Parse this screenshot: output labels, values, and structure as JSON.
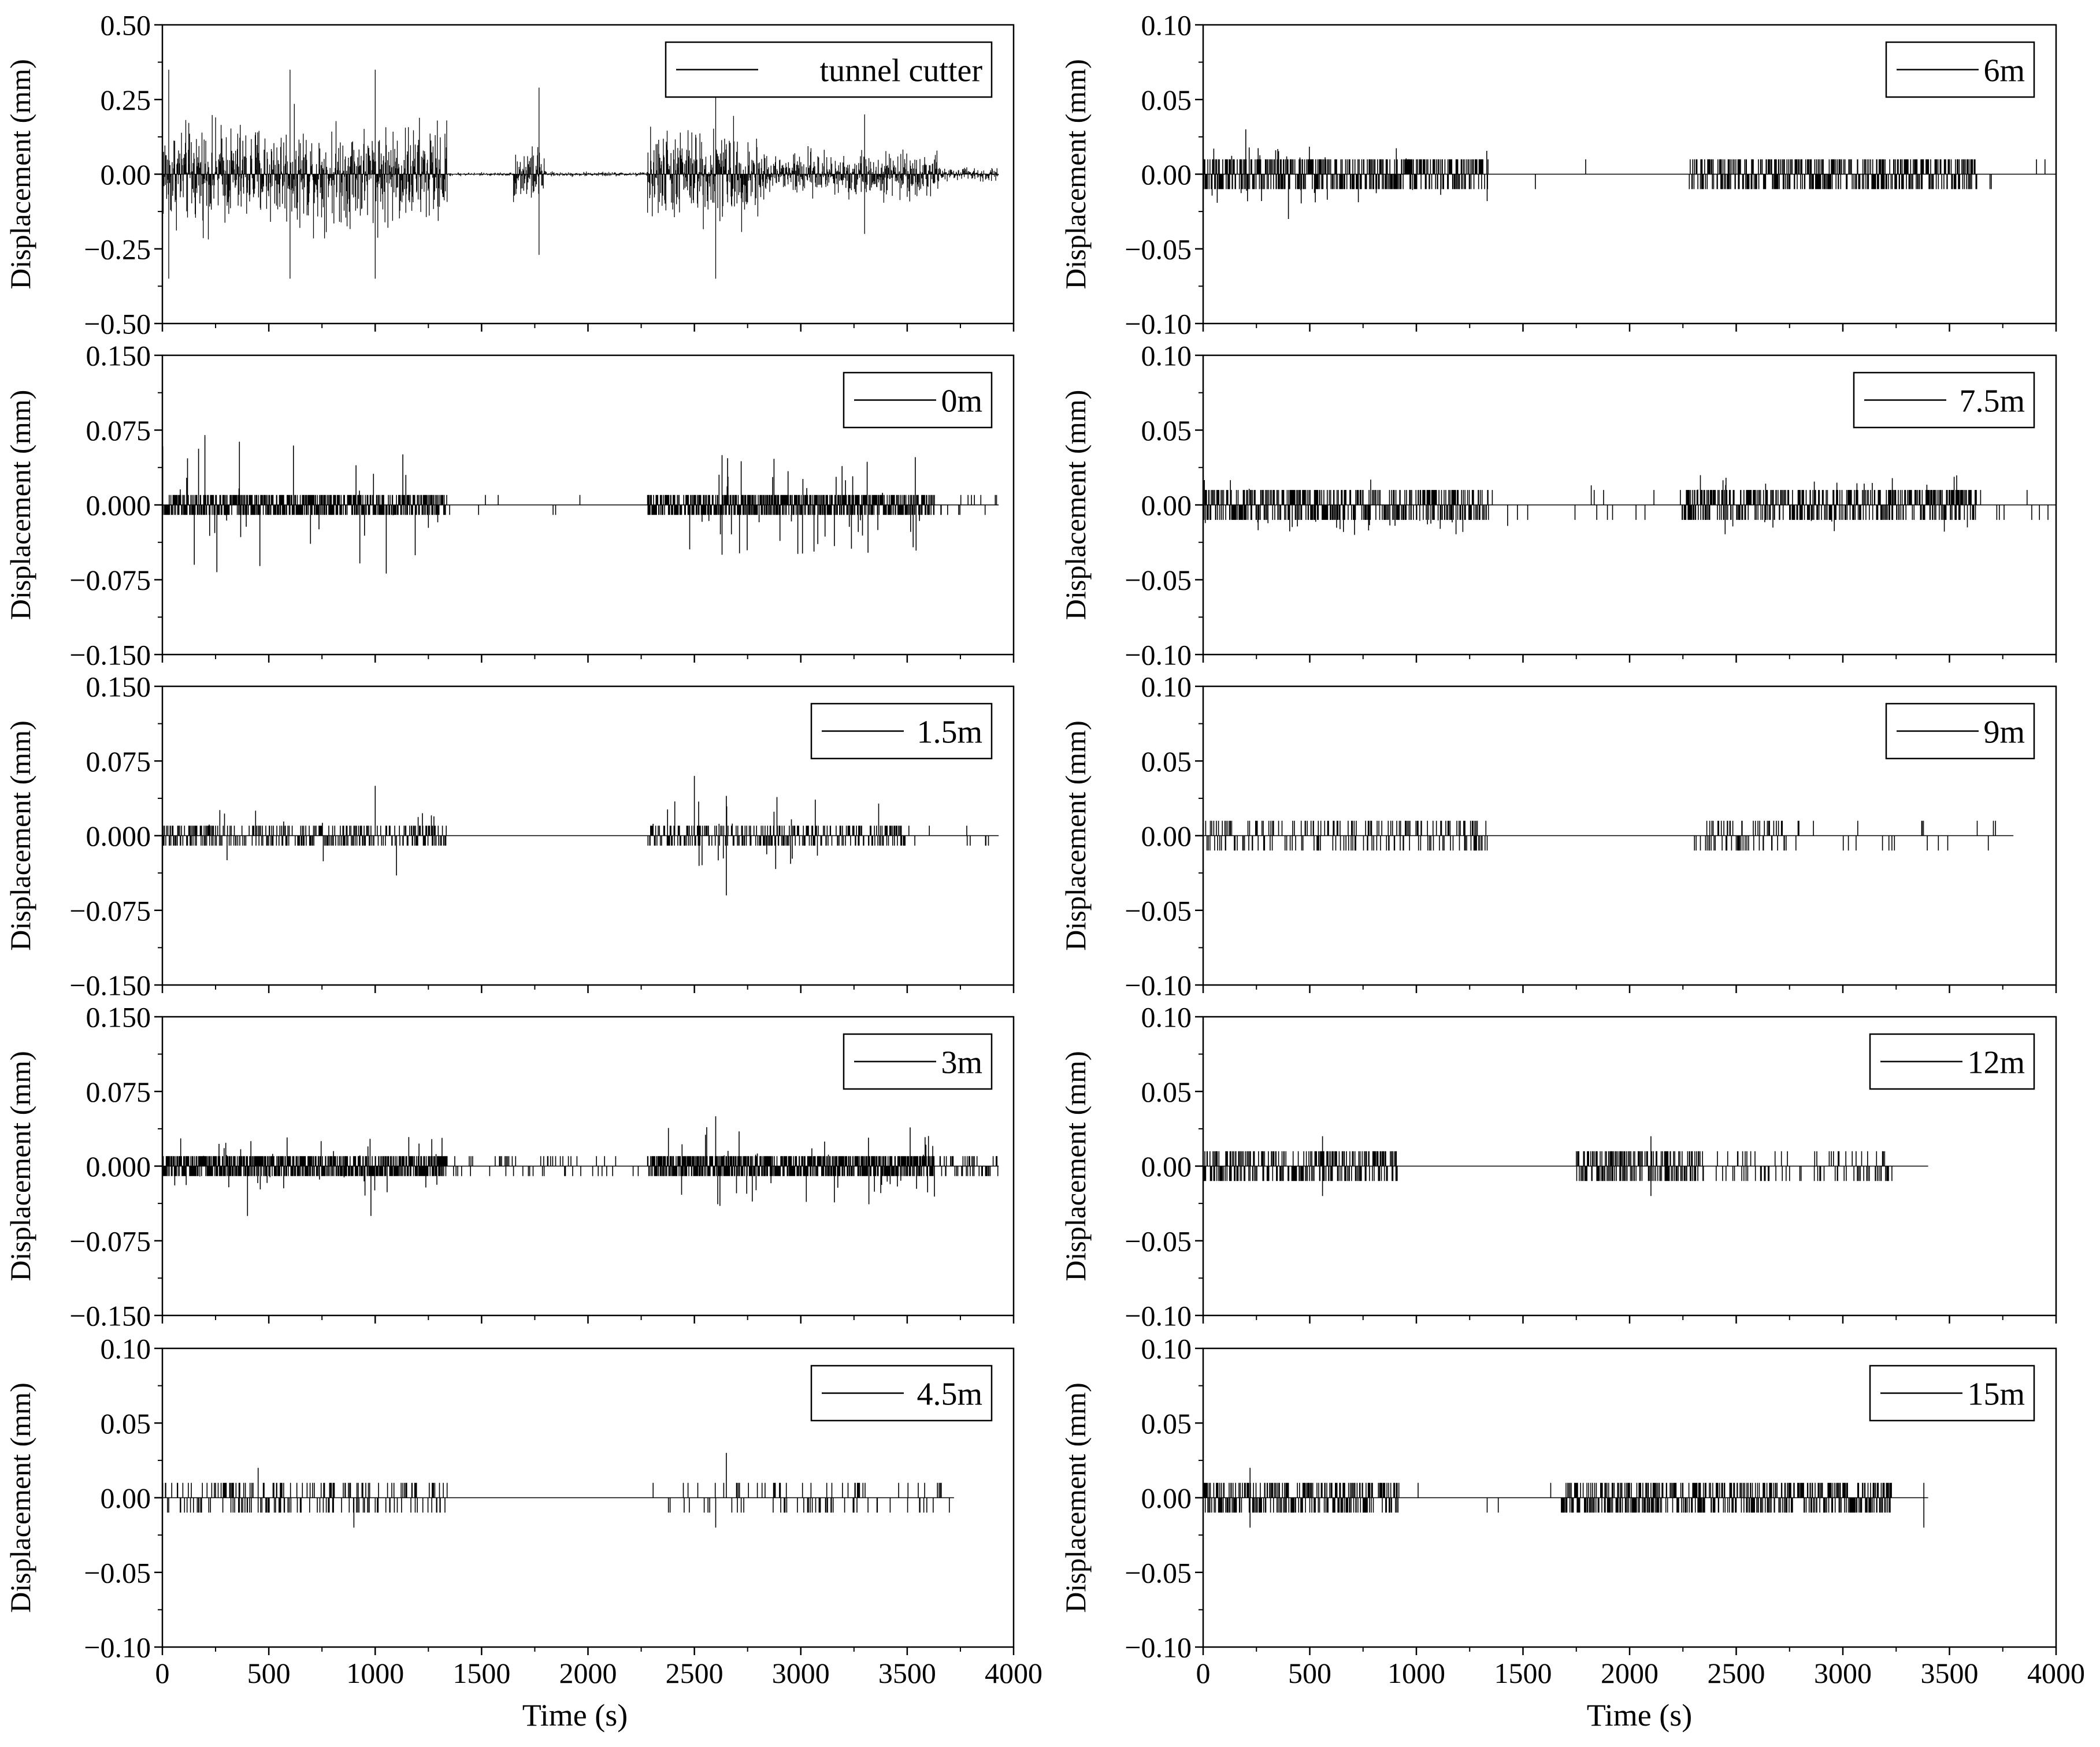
{
  "figure": {
    "xlabel": "Time (s)",
    "ylabel": "Displacement (mm)"
  },
  "chart_data": [
    {
      "type": "line",
      "column": "left",
      "row": 0,
      "legend": "tunnel cutter",
      "legend_position": "top-right",
      "ylim": [
        -0.5,
        0.5
      ],
      "yticks": [
        "0.50",
        "0.25",
        "0.00",
        "−0.25",
        "−0.50"
      ],
      "ytick_values": [
        0.5,
        0.25,
        0,
        -0.25,
        -0.5
      ],
      "xlim": [
        0,
        4000
      ],
      "ylabel": "Displacement (mm)",
      "pattern": "noise",
      "segments": [
        {
          "t0": 0,
          "t1": 1340,
          "amp": 0.22,
          "peak": 0.35
        },
        {
          "t0": 1340,
          "t1": 1650,
          "amp": 0.008,
          "peak": 0.01
        },
        {
          "t0": 1650,
          "t1": 1800,
          "amp": 0.12,
          "peak": 0.29
        },
        {
          "t0": 1800,
          "t1": 2280,
          "amp": 0.01,
          "peak": 0.015
        },
        {
          "t0": 2280,
          "t1": 2800,
          "amp": 0.2,
          "peak": 0.35
        },
        {
          "t0": 2800,
          "t1": 3650,
          "amp": 0.1,
          "peak": 0.2
        },
        {
          "t0": 3650,
          "t1": 3930,
          "amp": 0.03,
          "peak": 0.08
        }
      ],
      "extremes": [
        [
          30,
          0.35
        ],
        [
          30,
          -0.35
        ],
        [
          600,
          0.35
        ],
        [
          600,
          -0.35
        ],
        [
          1000,
          0.35
        ],
        [
          1000,
          -0.35
        ],
        [
          1770,
          0.29
        ],
        [
          1770,
          -0.27
        ],
        [
          2600,
          0.35
        ],
        [
          2600,
          -0.35
        ],
        [
          3300,
          0.2
        ],
        [
          3300,
          -0.2
        ]
      ]
    },
    {
      "type": "line",
      "column": "left",
      "row": 1,
      "legend": "0m",
      "legend_position": "top-right",
      "ylim": [
        -0.15,
        0.15
      ],
      "yticks": [
        "0.150",
        "0.075",
        "0.000",
        "−0.075",
        "−0.150"
      ],
      "ytick_values": [
        0.15,
        0.075,
        0,
        -0.075,
        -0.15
      ],
      "xlim": [
        0,
        4000
      ],
      "ylabel": "Displacement (mm)",
      "pattern": "band",
      "segments": [
        {
          "t0": 0,
          "t1": 1340,
          "band": 0.01,
          "spike": 0.07,
          "density": 0.85
        },
        {
          "t0": 1340,
          "t1": 2280,
          "band": 0.01,
          "spike": 0.01,
          "density": 0.02
        },
        {
          "t0": 2280,
          "t1": 3630,
          "band": 0.01,
          "spike": 0.05,
          "density": 0.85
        },
        {
          "t0": 3630,
          "t1": 3930,
          "band": 0.01,
          "spike": 0.01,
          "density": 0.1
        }
      ],
      "extremes": [
        [
          200,
          0.07
        ],
        [
          150,
          -0.06
        ],
        [
          2630,
          0.05
        ],
        [
          2630,
          -0.05
        ]
      ]
    },
    {
      "type": "line",
      "column": "left",
      "row": 2,
      "legend": "1.5m",
      "legend_position": "top-right",
      "ylim": [
        -0.15,
        0.15
      ],
      "yticks": [
        "0.150",
        "0.075",
        "0.000",
        "−0.075",
        "−0.150"
      ],
      "ytick_values": [
        0.15,
        0.075,
        0,
        -0.075,
        -0.15
      ],
      "xlim": [
        0,
        4000
      ],
      "ylabel": "Displacement (mm)",
      "pattern": "band",
      "segments": [
        {
          "t0": 0,
          "t1": 1340,
          "band": 0.01,
          "spike": 0.03,
          "density": 0.45
        },
        {
          "t0": 1340,
          "t1": 2280,
          "band": 0.01,
          "spike": 0.01,
          "density": 0.0
        },
        {
          "t0": 2280,
          "t1": 3500,
          "band": 0.01,
          "spike": 0.04,
          "density": 0.45
        },
        {
          "t0": 3500,
          "t1": 3930,
          "band": 0.01,
          "spike": 0.01,
          "density": 0.05
        }
      ],
      "extremes": [
        [
          1000,
          0.05
        ],
        [
          1100,
          -0.04
        ],
        [
          2500,
          0.06
        ],
        [
          2650,
          -0.06
        ],
        [
          2650,
          0.04
        ]
      ]
    },
    {
      "type": "line",
      "column": "left",
      "row": 3,
      "legend": "3m",
      "legend_position": "top-right",
      "ylim": [
        -0.15,
        0.15
      ],
      "yticks": [
        "0.150",
        "0.075",
        "0.000",
        "−0.075",
        "−0.150"
      ],
      "ytick_values": [
        0.15,
        0.075,
        0,
        -0.075,
        -0.15
      ],
      "xlim": [
        0,
        4000
      ],
      "ylabel": "Displacement (mm)",
      "pattern": "band",
      "segments": [
        {
          "t0": 0,
          "t1": 1340,
          "band": 0.01,
          "spike": 0.03,
          "density": 0.95
        },
        {
          "t0": 1340,
          "t1": 2280,
          "band": 0.01,
          "spike": 0.01,
          "density": 0.12
        },
        {
          "t0": 2280,
          "t1": 3630,
          "band": 0.01,
          "spike": 0.04,
          "density": 0.95
        },
        {
          "t0": 3630,
          "t1": 3930,
          "band": 0.01,
          "spike": 0.01,
          "density": 0.3
        }
      ],
      "extremes": [
        [
          980,
          -0.05
        ],
        [
          400,
          -0.05
        ],
        [
          2600,
          0.05
        ],
        [
          2620,
          -0.04
        ]
      ]
    },
    {
      "type": "line",
      "column": "left",
      "row": 4,
      "legend": "4.5m",
      "legend_position": "top-right",
      "ylim": [
        -0.1,
        0.1
      ],
      "yticks": [
        "0.10",
        "0.05",
        "0.00",
        "−0.05",
        "−0.10"
      ],
      "ytick_values": [
        0.1,
        0.05,
        0,
        -0.05,
        -0.1
      ],
      "xlim": [
        0,
        4000
      ],
      "ylabel": "Displacement (mm)",
      "pattern": "band",
      "segments": [
        {
          "t0": 0,
          "t1": 1340,
          "band": 0.01,
          "spike": 0.01,
          "density": 0.3
        },
        {
          "t0": 1340,
          "t1": 2280,
          "band": 0.01,
          "spike": 0.0,
          "density": 0.0
        },
        {
          "t0": 2280,
          "t1": 3720,
          "band": 0.01,
          "spike": 0.01,
          "density": 0.12
        }
      ],
      "extremes": [
        [
          450,
          0.02
        ],
        [
          900,
          -0.02
        ],
        [
          2650,
          0.03
        ],
        [
          2600,
          -0.02
        ]
      ]
    },
    {
      "type": "line",
      "column": "right",
      "row": 0,
      "legend": "6m",
      "legend_position": "top-right",
      "ylim": [
        -0.1,
        0.1
      ],
      "yticks": [
        "0.10",
        "0.05",
        "0.00",
        "−0.05",
        "−0.10"
      ],
      "ytick_values": [
        0.1,
        0.05,
        0,
        -0.05,
        -0.1
      ],
      "xlim": [
        0,
        4000
      ],
      "ylabel": "Displacement (mm)",
      "pattern": "band",
      "segments": [
        {
          "t0": 0,
          "t1": 1340,
          "band": 0.01,
          "spike": 0.02,
          "density": 0.6
        },
        {
          "t0": 1340,
          "t1": 2280,
          "band": 0.01,
          "spike": 0.0,
          "density": 0.005
        },
        {
          "t0": 2280,
          "t1": 3630,
          "band": 0.01,
          "spike": 0.01,
          "density": 0.6
        },
        {
          "t0": 3630,
          "t1": 4000,
          "band": 0.01,
          "spike": 0.0,
          "density": 0.02
        }
      ],
      "extremes": [
        [
          200,
          0.03
        ],
        [
          400,
          -0.03
        ]
      ]
    },
    {
      "type": "line",
      "column": "right",
      "row": 1,
      "legend": "7.5m",
      "legend_position": "top-right",
      "ylim": [
        -0.1,
        0.1
      ],
      "yticks": [
        "0.10",
        "0.05",
        "0.00",
        "−0.05",
        "−0.10"
      ],
      "ytick_values": [
        0.1,
        0.05,
        0,
        -0.05,
        -0.1
      ],
      "xlim": [
        0,
        4000
      ],
      "ylabel": "Displacement (mm)",
      "pattern": "band",
      "segments": [
        {
          "t0": 0,
          "t1": 1340,
          "band": 0.01,
          "spike": 0.02,
          "density": 0.6
        },
        {
          "t0": 1340,
          "t1": 2240,
          "band": 0.01,
          "spike": 0.02,
          "density": 0.03
        },
        {
          "t0": 2240,
          "t1": 3630,
          "band": 0.01,
          "spike": 0.02,
          "density": 0.6
        },
        {
          "t0": 3630,
          "t1": 4000,
          "band": 0.01,
          "spike": 0.02,
          "density": 0.03
        }
      ],
      "extremes": []
    },
    {
      "type": "line",
      "column": "right",
      "row": 2,
      "legend": "9m",
      "legend_position": "top-right",
      "ylim": [
        -0.1,
        0.1
      ],
      "yticks": [
        "0.10",
        "0.05",
        "0.00",
        "−0.05",
        "−0.10"
      ],
      "ytick_values": [
        0.1,
        0.05,
        0,
        -0.05,
        -0.1
      ],
      "xlim": [
        0,
        4000
      ],
      "ylabel": "Displacement (mm)",
      "pattern": "band",
      "segments": [
        {
          "t0": 0,
          "t1": 1340,
          "band": 0.01,
          "spike": 0.01,
          "density": 0.25
        },
        {
          "t0": 1340,
          "t1": 2300,
          "band": 0.01,
          "spike": 0.0,
          "density": 0.0
        },
        {
          "t0": 2300,
          "t1": 2800,
          "band": 0.01,
          "spike": 0.01,
          "density": 0.3
        },
        {
          "t0": 2800,
          "t1": 3800,
          "band": 0.01,
          "spike": 0.01,
          "density": 0.05
        }
      ],
      "extremes": []
    },
    {
      "type": "line",
      "column": "right",
      "row": 3,
      "legend": "12m",
      "legend_position": "top-right",
      "ylim": [
        -0.1,
        0.1
      ],
      "yticks": [
        "0.10",
        "0.05",
        "0.00",
        "−0.05",
        "−0.10"
      ],
      "ytick_values": [
        0.1,
        0.05,
        0,
        -0.05,
        -0.1
      ],
      "xlim": [
        0,
        4000
      ],
      "ylabel": "Displacement (mm)",
      "pattern": "band",
      "segments": [
        {
          "t0": 0,
          "t1": 920,
          "band": 0.01,
          "spike": 0.01,
          "density": 0.55
        },
        {
          "t0": 920,
          "t1": 1750,
          "band": 0.01,
          "spike": 0.0,
          "density": 0.0
        },
        {
          "t0": 1750,
          "t1": 2350,
          "band": 0.01,
          "spike": 0.01,
          "density": 0.55
        },
        {
          "t0": 2350,
          "t1": 3250,
          "band": 0.01,
          "spike": 0.01,
          "density": 0.2
        }
      ],
      "line_end": 3400,
      "extremes": [
        [
          560,
          0.02
        ],
        [
          560,
          -0.02
        ],
        [
          2100,
          0.02
        ],
        [
          2100,
          -0.02
        ]
      ]
    },
    {
      "type": "line",
      "column": "right",
      "row": 4,
      "legend": "15m",
      "legend_position": "top-right",
      "ylim": [
        -0.1,
        0.1
      ],
      "yticks": [
        "0.10",
        "0.05",
        "0.00",
        "−0.05",
        "−0.10"
      ],
      "ytick_values": [
        0.1,
        0.05,
        0,
        -0.05,
        -0.1
      ],
      "xlim": [
        0,
        4000
      ],
      "ylabel": "Displacement (mm)",
      "pattern": "band",
      "segments": [
        {
          "t0": 0,
          "t1": 920,
          "band": 0.01,
          "spike": 0.01,
          "density": 0.6
        },
        {
          "t0": 920,
          "t1": 1680,
          "band": 0.01,
          "spike": 0.0,
          "density": 0.004
        },
        {
          "t0": 1680,
          "t1": 3230,
          "band": 0.01,
          "spike": 0.01,
          "density": 0.6
        }
      ],
      "line_end": 3400,
      "extremes": [
        [
          220,
          0.02
        ],
        [
          220,
          -0.02
        ],
        [
          3380,
          -0.02
        ],
        [
          3380,
          0.01
        ]
      ]
    }
  ]
}
